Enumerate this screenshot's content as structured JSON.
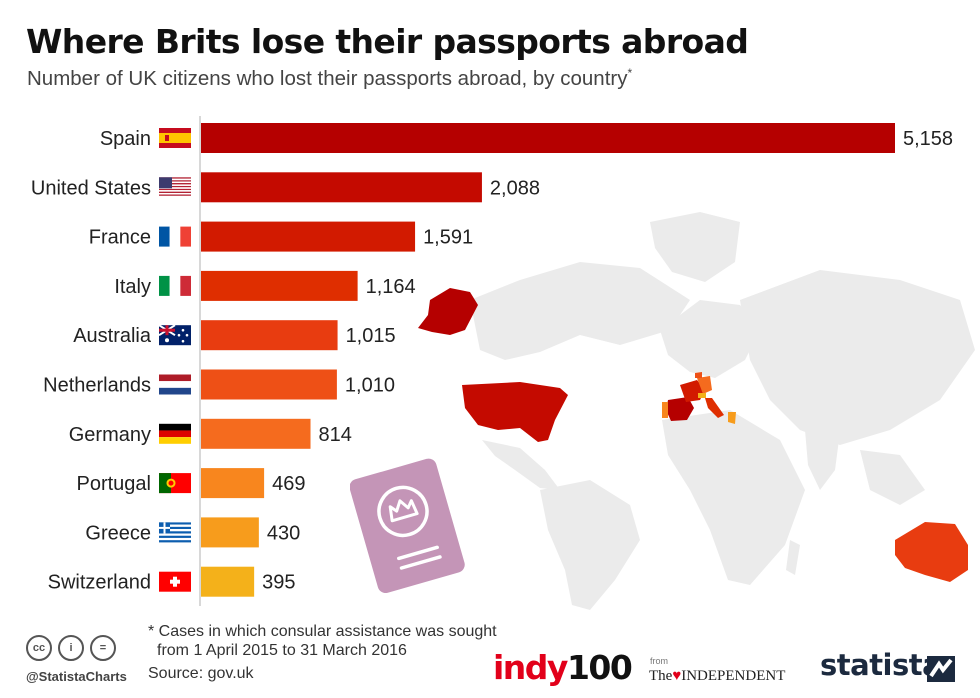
{
  "header": {
    "title": "Where Brits lose their passports abroad",
    "subtitle": "Number of UK citizens who lost their passports abroad, by country",
    "subtitle_marker": "*"
  },
  "chart_data": {
    "type": "bar",
    "orientation": "horizontal",
    "title": "Where Brits lose their passports abroad",
    "subtitle": "Number of UK citizens who lost their passports abroad, by country",
    "categories": [
      "Spain",
      "United States",
      "France",
      "Italy",
      "Australia",
      "Netherlands",
      "Germany",
      "Portugal",
      "Greece",
      "Switzerland"
    ],
    "values": [
      5158,
      2088,
      1591,
      1164,
      1015,
      1010,
      814,
      469,
      430,
      395
    ],
    "value_labels": [
      "5,158",
      "2,088",
      "1,591",
      "1,164",
      "1,015",
      "1,010",
      "814",
      "469",
      "430",
      "395"
    ],
    "colors": [
      "#b50000",
      "#c40a00",
      "#d21a00",
      "#df2e00",
      "#e83c10",
      "#ee5016",
      "#f56b1e",
      "#f8861e",
      "#f79c1c",
      "#f4b11a"
    ],
    "xlim": [
      0,
      5158
    ],
    "grid": false,
    "legend": "none"
  },
  "footnote": {
    "line1": "* Cases in which consular assistance was sought",
    "line2": "from 1 April 2015 to 31 March 2016"
  },
  "source": "Source: gov.uk",
  "branding": {
    "cc_icons": [
      "cc",
      "i",
      "="
    ],
    "handle": "@StatistaCharts",
    "indy_text": "indy",
    "indy_num": "100",
    "from_text": "from",
    "independent_the": "The",
    "independent_name": "INDEPENDENT",
    "statista": "statista"
  }
}
